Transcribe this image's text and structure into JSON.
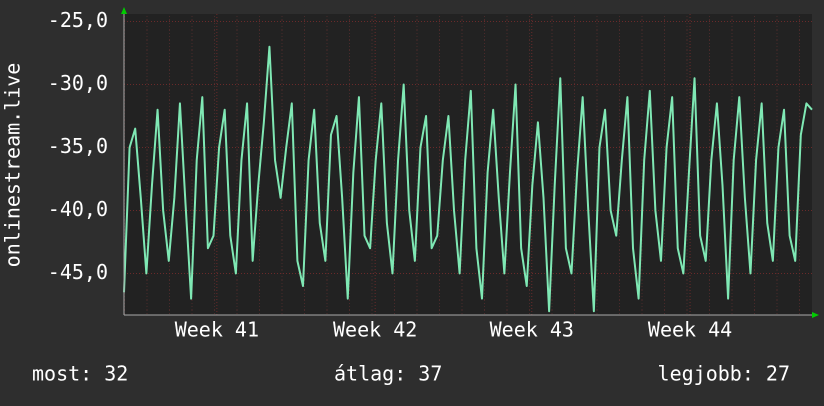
{
  "chart_data": {
    "type": "line",
    "y_label": "onlinestream.live",
    "ylim": [
      -48.3,
      -24.4
    ],
    "yticks": [
      {
        "value": -25,
        "label": "-25,0"
      },
      {
        "value": -30,
        "label": "-30,0"
      },
      {
        "value": -35,
        "label": "-35,0"
      },
      {
        "value": -40,
        "label": "-40,0"
      },
      {
        "value": -45,
        "label": "-45,0"
      }
    ],
    "xlim": [
      0,
      123
    ],
    "xticks": [
      {
        "value": 16.6,
        "label": "Week 41"
      },
      {
        "value": 44.9,
        "label": "Week 42"
      },
      {
        "value": 72.9,
        "label": "Week 43"
      },
      {
        "value": 101.2,
        "label": "Week 44"
      }
    ],
    "grid": true,
    "series": [
      {
        "color": "#7fe8b4",
        "values": [
          -46.5,
          -35,
          -33.5,
          -39,
          -45,
          -38,
          -32,
          -40,
          -44,
          -39,
          -31.5,
          -39.5,
          -47,
          -36,
          -31,
          -43,
          -42,
          -35,
          -32,
          -42,
          -45,
          -36,
          -31.5,
          -44,
          -38,
          -33,
          -27,
          -36,
          -39,
          -35,
          -31.5,
          -44,
          -46,
          -36,
          -32,
          -41,
          -44,
          -34,
          -32.5,
          -39,
          -47,
          -37,
          -31,
          -42,
          -43,
          -36,
          -31.5,
          -41,
          -45,
          -36,
          -30,
          -40,
          -44,
          -35,
          -32.5,
          -43,
          -42,
          -36,
          -32.5,
          -40,
          -45,
          -36,
          -30.5,
          -43,
          -47,
          -37,
          -32,
          -39,
          -45,
          -37,
          -30,
          -43,
          -46,
          -38,
          -33,
          -39,
          -48,
          -38,
          -29.5,
          -43,
          -45,
          -37,
          -31,
          -40,
          -48,
          -35,
          -32,
          -40,
          -42,
          -36,
          -31,
          -43,
          -47,
          -36,
          -30.5,
          -40,
          -44,
          -35,
          -31,
          -43,
          -45,
          -37,
          -29.5,
          -42,
          -44,
          -36,
          -31.5,
          -38,
          -47,
          -36,
          -31,
          -39,
          -45,
          -36,
          -31.5,
          -41,
          -44,
          -35,
          -32,
          -42,
          -44,
          -34,
          -31.5,
          -32
        ]
      }
    ],
    "footer": {
      "current": "most: 32",
      "average": "átlag: 37",
      "best": "legjobb: 27"
    }
  }
}
